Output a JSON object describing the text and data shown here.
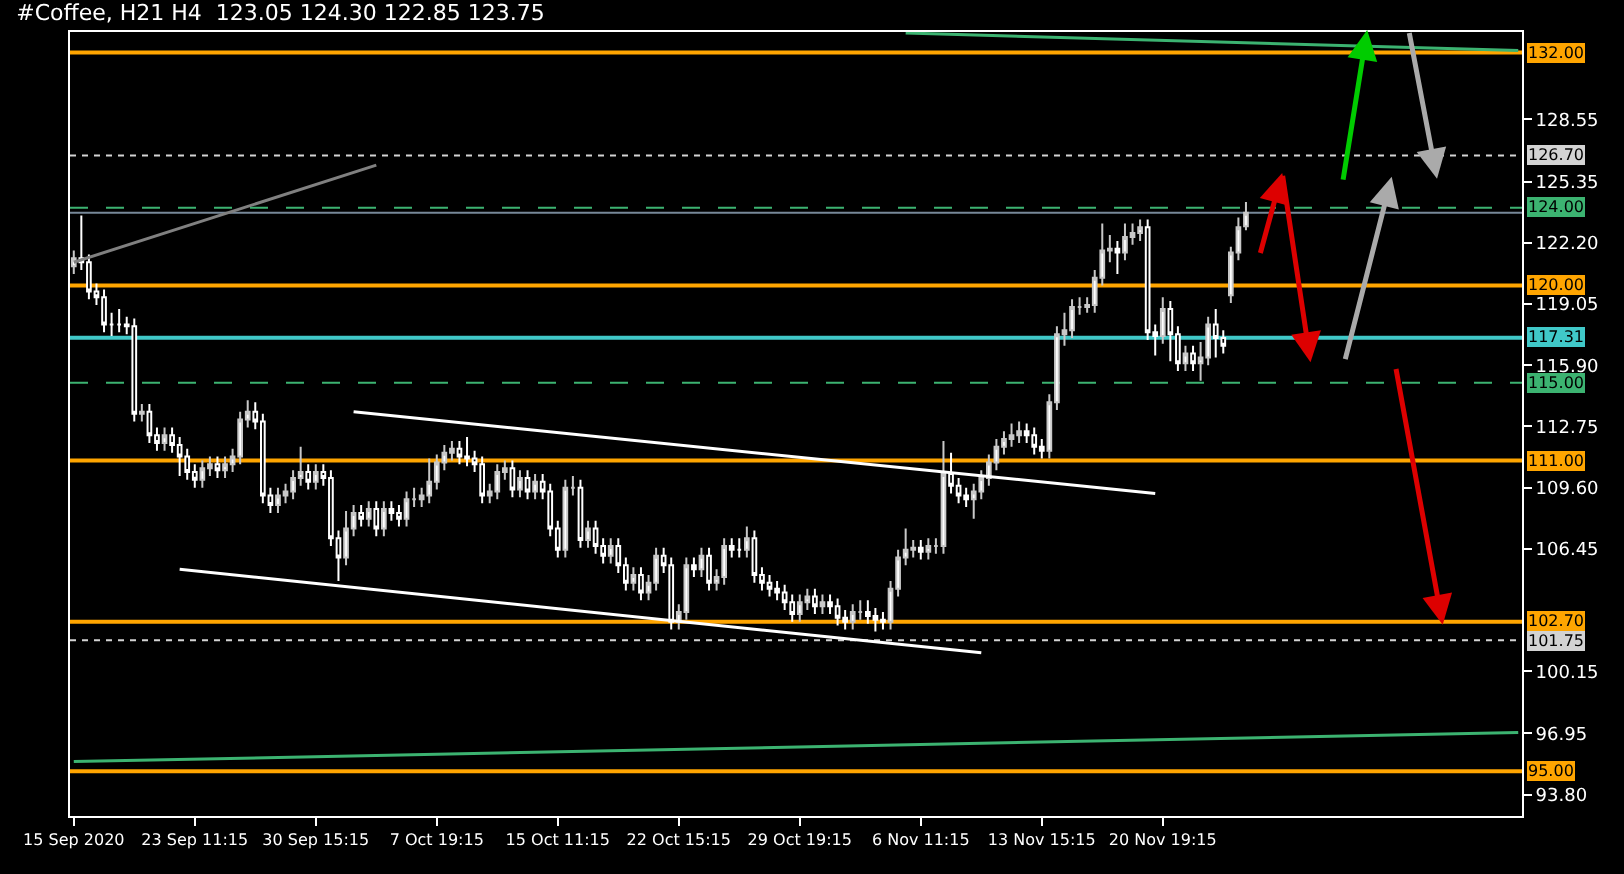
{
  "chart_data": {
    "type": "candlestick",
    "title": "#Coffee, H21 H4  123.05 124.30 122.85 123.75",
    "categories": [
      "15 Sep 2020",
      null,
      null,
      null,
      null,
      null,
      null,
      null,
      null,
      null,
      null,
      null,
      null,
      null,
      null,
      null,
      "23 Sep 11:15",
      null,
      null,
      null,
      null,
      null,
      null,
      null,
      null,
      null,
      null,
      null,
      null,
      null,
      null,
      null,
      "30 Sep 15:15",
      null,
      null,
      null,
      null,
      null,
      null,
      null,
      null,
      null,
      null,
      null,
      null,
      null,
      null,
      null,
      "7 Oct 19:15",
      null,
      null,
      null,
      null,
      null,
      null,
      null,
      null,
      null,
      null,
      null,
      null,
      null,
      null,
      null,
      "15 Oct 11:15",
      null,
      null,
      null,
      null,
      null,
      null,
      null,
      null,
      null,
      null,
      null,
      null,
      null,
      null,
      null,
      "22 Oct 15:15",
      null,
      null,
      null,
      null,
      null,
      null,
      null,
      null,
      null,
      null,
      null,
      null,
      null,
      null,
      null,
      "29 Oct 19:15",
      null,
      null,
      null,
      null,
      null,
      null,
      null,
      null,
      null,
      null,
      null,
      null,
      null,
      null,
      null,
      "6 Nov 11:15",
      null,
      null,
      null,
      null,
      null,
      null,
      null,
      null,
      null,
      null,
      null,
      null,
      null,
      null,
      null,
      "13 Nov 15:15",
      null,
      null,
      null,
      null,
      null,
      null,
      null,
      null,
      null,
      null,
      null,
      null,
      null,
      null,
      null,
      "20 Nov 19:15",
      null,
      null,
      null,
      null,
      null,
      null,
      null,
      null,
      null,
      null,
      null,
      null,
      null,
      null,
      null,
      null,
      null,
      null,
      null,
      null,
      null,
      null,
      null,
      null,
      null,
      null,
      null,
      null,
      null,
      null,
      null,
      null,
      null,
      null,
      null,
      null,
      null,
      null,
      null,
      null,
      null,
      null,
      null,
      null,
      null,
      null,
      null
    ],
    "ohlc": [
      [
        121.0,
        121.8,
        120.6,
        121.4
      ],
      [
        121.4,
        123.6,
        120.8,
        121.2
      ],
      [
        121.2,
        121.6,
        119.3,
        119.7
      ],
      [
        119.7,
        120.1,
        119.0,
        119.4
      ],
      [
        119.4,
        119.8,
        117.6,
        118.0
      ],
      [
        118.0,
        118.6,
        117.4,
        118.0
      ],
      [
        118.0,
        118.8,
        117.6,
        118.0
      ],
      [
        118.0,
        118.4,
        117.5,
        117.9
      ],
      [
        117.9,
        118.3,
        113.0,
        113.4
      ],
      [
        113.4,
        113.9,
        113.0,
        113.5
      ],
      [
        113.5,
        113.9,
        111.9,
        112.3
      ],
      [
        112.3,
        112.7,
        111.5,
        111.9
      ],
      [
        111.9,
        112.7,
        111.5,
        112.3
      ],
      [
        112.3,
        112.7,
        111.4,
        111.8
      ],
      [
        111.8,
        112.2,
        110.2,
        111.2
      ],
      [
        111.2,
        111.6,
        110.0,
        110.4
      ],
      [
        110.4,
        110.8,
        109.6,
        110.0
      ],
      [
        110.0,
        111.0,
        109.6,
        110.6
      ],
      [
        110.6,
        111.2,
        110.2,
        110.8
      ],
      [
        110.8,
        111.2,
        110.1,
        110.5
      ],
      [
        110.5,
        111.2,
        110.1,
        110.8
      ],
      [
        110.8,
        111.6,
        110.4,
        111.2
      ],
      [
        111.2,
        113.5,
        110.8,
        113.1
      ],
      [
        113.1,
        114.1,
        112.7,
        113.5
      ],
      [
        113.5,
        114.0,
        112.6,
        113.0
      ],
      [
        113.0,
        113.4,
        108.8,
        109.2
      ],
      [
        109.2,
        109.6,
        108.3,
        108.7
      ],
      [
        108.7,
        109.6,
        108.3,
        109.2
      ],
      [
        109.2,
        109.8,
        108.8,
        109.4
      ],
      [
        109.4,
        110.5,
        109.0,
        110.1
      ],
      [
        110.1,
        111.7,
        109.7,
        110.4
      ],
      [
        110.4,
        110.8,
        109.5,
        109.9
      ],
      [
        109.9,
        110.8,
        109.5,
        110.4
      ],
      [
        110.4,
        110.8,
        109.7,
        110.1
      ],
      [
        110.1,
        110.5,
        106.6,
        107.0
      ],
      [
        107.0,
        107.4,
        104.8,
        106.0
      ],
      [
        106.0,
        108.4,
        105.6,
        107.5
      ],
      [
        107.5,
        108.7,
        107.1,
        108.3
      ],
      [
        108.3,
        108.7,
        107.6,
        108.0
      ],
      [
        108.0,
        108.9,
        107.6,
        108.5
      ],
      [
        108.5,
        108.9,
        107.1,
        107.5
      ],
      [
        107.5,
        108.9,
        107.1,
        108.5
      ],
      [
        108.5,
        108.9,
        107.9,
        108.3
      ],
      [
        108.3,
        108.7,
        107.6,
        108.0
      ],
      [
        108.0,
        109.4,
        107.6,
        109.0
      ],
      [
        109.0,
        109.6,
        108.6,
        109.0
      ],
      [
        109.0,
        109.6,
        108.6,
        109.2
      ],
      [
        109.2,
        111.1,
        108.8,
        109.9
      ],
      [
        109.9,
        111.3,
        109.5,
        110.9
      ],
      [
        110.9,
        111.8,
        110.5,
        111.4
      ],
      [
        111.4,
        112.0,
        111.0,
        111.6
      ],
      [
        111.6,
        112.0,
        110.8,
        111.2
      ],
      [
        111.2,
        112.2,
        110.7,
        111.1
      ],
      [
        111.1,
        111.5,
        110.4,
        110.8
      ],
      [
        110.8,
        111.2,
        108.8,
        109.2
      ],
      [
        109.2,
        109.8,
        108.8,
        109.4
      ],
      [
        109.4,
        110.8,
        109.0,
        110.4
      ],
      [
        110.4,
        111.0,
        110.0,
        110.6
      ],
      [
        110.6,
        111.0,
        109.1,
        109.5
      ],
      [
        109.5,
        110.5,
        109.1,
        110.1
      ],
      [
        110.1,
        110.5,
        109.0,
        109.4
      ],
      [
        109.4,
        110.3,
        109.0,
        109.9
      ],
      [
        109.9,
        110.3,
        109.0,
        109.4
      ],
      [
        109.4,
        109.8,
        107.1,
        107.5
      ],
      [
        107.5,
        107.9,
        106.0,
        106.4
      ],
      [
        106.4,
        110.0,
        106.0,
        109.6
      ],
      [
        109.6,
        110.2,
        109.2,
        109.6
      ],
      [
        109.6,
        110.0,
        106.5,
        106.9
      ],
      [
        106.9,
        107.9,
        106.5,
        107.5
      ],
      [
        107.5,
        107.9,
        106.2,
        106.6
      ],
      [
        106.6,
        107.0,
        105.7,
        106.1
      ],
      [
        106.1,
        107.0,
        105.7,
        106.6
      ],
      [
        106.6,
        107.0,
        105.2,
        105.6
      ],
      [
        105.6,
        106.0,
        104.3,
        104.7
      ],
      [
        104.7,
        105.5,
        104.3,
        105.1
      ],
      [
        105.1,
        105.5,
        103.8,
        104.2
      ],
      [
        104.2,
        105.1,
        103.8,
        104.7
      ],
      [
        104.7,
        106.5,
        104.3,
        106.1
      ],
      [
        106.1,
        106.5,
        105.2,
        105.6
      ],
      [
        105.6,
        106.0,
        102.3,
        102.7
      ],
      [
        102.7,
        103.6,
        102.3,
        103.2
      ],
      [
        103.2,
        106.0,
        102.8,
        105.6
      ],
      [
        105.6,
        106.0,
        105.0,
        105.4
      ],
      [
        105.4,
        106.5,
        105.0,
        106.1
      ],
      [
        106.1,
        106.5,
        104.3,
        104.7
      ],
      [
        104.7,
        105.4,
        104.3,
        105.0
      ],
      [
        105.0,
        107.0,
        104.6,
        106.6
      ],
      [
        106.6,
        107.0,
        106.0,
        106.4
      ],
      [
        106.4,
        107.0,
        106.0,
        106.4
      ],
      [
        106.4,
        107.6,
        106.0,
        107.0
      ],
      [
        107.0,
        107.4,
        104.7,
        105.1
      ],
      [
        105.1,
        105.5,
        104.3,
        104.7
      ],
      [
        104.7,
        105.1,
        104.0,
        104.4
      ],
      [
        104.4,
        104.8,
        103.8,
        104.2
      ],
      [
        104.2,
        104.6,
        103.3,
        103.7
      ],
      [
        103.7,
        104.1,
        102.7,
        103.1
      ],
      [
        103.1,
        104.1,
        102.7,
        103.7
      ],
      [
        103.7,
        104.4,
        103.3,
        104.0
      ],
      [
        104.0,
        104.4,
        103.1,
        103.5
      ],
      [
        103.5,
        104.1,
        103.1,
        103.7
      ],
      [
        103.7,
        104.1,
        103.1,
        103.5
      ],
      [
        103.5,
        103.9,
        102.5,
        102.9
      ],
      [
        102.9,
        103.3,
        102.3,
        102.7
      ],
      [
        102.7,
        103.6,
        102.3,
        103.2
      ],
      [
        103.2,
        103.8,
        102.8,
        103.2
      ],
      [
        103.2,
        103.8,
        102.6,
        103.0
      ],
      [
        103.0,
        103.4,
        102.2,
        102.8
      ],
      [
        102.8,
        103.2,
        102.3,
        102.7
      ],
      [
        102.7,
        104.8,
        102.3,
        104.4
      ],
      [
        104.4,
        106.4,
        104.0,
        106.0
      ],
      [
        106.0,
        107.5,
        105.6,
        106.4
      ],
      [
        106.4,
        106.9,
        106.0,
        106.5
      ],
      [
        106.5,
        106.9,
        105.9,
        106.3
      ],
      [
        106.3,
        107.0,
        105.9,
        106.6
      ],
      [
        106.6,
        107.0,
        106.2,
        106.6
      ],
      [
        106.6,
        112.0,
        106.2,
        110.3
      ],
      [
        110.3,
        111.4,
        109.3,
        109.7
      ],
      [
        109.7,
        110.1,
        108.8,
        109.2
      ],
      [
        109.2,
        109.6,
        108.6,
        109.0
      ],
      [
        109.0,
        109.8,
        108.0,
        109.4
      ],
      [
        109.4,
        110.5,
        109.0,
        110.1
      ],
      [
        110.1,
        111.3,
        109.7,
        110.9
      ],
      [
        110.9,
        112.1,
        110.5,
        111.7
      ],
      [
        111.7,
        112.5,
        111.3,
        112.1
      ],
      [
        112.1,
        112.9,
        111.7,
        112.3
      ],
      [
        112.3,
        113.0,
        111.9,
        112.5
      ],
      [
        112.5,
        112.9,
        111.9,
        112.3
      ],
      [
        112.3,
        112.7,
        111.3,
        111.7
      ],
      [
        111.7,
        112.1,
        111.1,
        111.5
      ],
      [
        111.5,
        114.4,
        111.1,
        114.0
      ],
      [
        114.0,
        117.9,
        113.6,
        117.5
      ],
      [
        117.5,
        118.6,
        116.9,
        117.7
      ],
      [
        117.7,
        119.3,
        117.3,
        118.9
      ],
      [
        118.9,
        119.4,
        118.5,
        118.9
      ],
      [
        118.9,
        119.4,
        118.6,
        119.0
      ],
      [
        119.0,
        120.8,
        118.6,
        120.4
      ],
      [
        120.4,
        123.2,
        120.0,
        121.8
      ],
      [
        121.8,
        122.6,
        121.2,
        121.9
      ],
      [
        121.9,
        122.3,
        120.6,
        121.7
      ],
      [
        121.7,
        123.2,
        121.3,
        122.5
      ],
      [
        122.5,
        123.2,
        122.1,
        122.7
      ],
      [
        122.7,
        123.4,
        122.3,
        123.0
      ],
      [
        123.0,
        123.4,
        117.2,
        117.6
      ],
      [
        117.6,
        118.0,
        116.4,
        117.4
      ],
      [
        117.4,
        119.4,
        117.0,
        118.8
      ],
      [
        118.8,
        119.2,
        116.1,
        117.5
      ],
      [
        117.5,
        117.9,
        115.6,
        116.0
      ],
      [
        116.0,
        116.9,
        115.6,
        116.5
      ],
      [
        116.5,
        116.9,
        115.6,
        116.0
      ],
      [
        116.0,
        117.1,
        115.1,
        116.3
      ],
      [
        116.3,
        118.4,
        115.9,
        118.0
      ],
      [
        118.0,
        118.8,
        116.3,
        117.3
      ],
      [
        117.3,
        117.7,
        116.5,
        116.9
      ],
      [
        119.5,
        122.0,
        119.1,
        121.7
      ],
      [
        121.7,
        123.5,
        121.3,
        123.0
      ],
      [
        123.05,
        124.3,
        122.85,
        123.75
      ],
      null,
      null,
      null,
      null,
      null,
      null,
      null,
      null,
      null,
      null,
      null,
      null,
      null,
      null,
      null,
      null,
      null,
      null,
      null,
      null,
      null,
      null,
      null,
      null,
      null,
      null,
      null,
      null,
      null,
      null,
      null,
      null,
      null,
      null,
      null,
      null
    ],
    "series": [
      {
        "type": "line",
        "color": "#ffffff",
        "values": [
          null,
          null,
          null,
          null,
          null,
          null,
          null,
          null,
          null,
          null,
          null,
          null,
          null,
          null,
          null,
          null,
          null,
          null,
          null,
          null,
          null,
          null,
          null,
          null,
          null,
          null,
          null,
          null,
          null,
          null,
          null,
          null,
          null,
          null,
          null,
          null,
          null,
          113.5,
          null,
          null,
          null,
          null,
          null,
          null,
          null,
          null,
          null,
          null,
          null,
          null,
          null,
          null,
          null,
          null,
          null,
          null,
          null,
          null,
          null,
          null,
          null,
          null,
          null,
          null,
          null,
          null,
          null,
          null,
          null,
          null,
          null,
          null,
          null,
          null,
          null,
          null,
          null,
          null,
          null,
          null,
          null,
          null,
          null,
          null,
          null,
          null,
          null,
          null,
          null,
          null,
          null,
          null,
          null,
          null,
          null,
          null,
          null,
          null,
          null,
          null,
          null,
          null,
          null,
          null,
          null,
          null,
          null,
          null,
          null,
          null,
          null,
          null,
          null,
          null,
          null,
          null,
          null,
          null,
          null,
          null,
          null,
          null,
          null,
          null,
          null,
          null,
          null,
          null,
          null,
          null,
          null,
          null,
          null,
          null,
          null,
          null,
          null,
          null,
          null,
          null,
          null,
          null,
          null,
          109.3,
          null,
          null,
          null,
          null,
          null,
          null,
          null,
          null,
          null,
          null,
          null,
          null,
          null,
          null,
          null,
          null,
          null,
          null,
          null,
          null,
          null,
          null,
          null,
          null,
          null,
          null,
          null,
          null,
          null,
          null,
          null,
          null,
          null,
          null,
          null,
          null,
          null,
          null,
          null,
          null,
          null,
          null,
          null,
          null,
          null,
          null,
          null,
          null
        ]
      },
      {
        "type": "line",
        "color": "#ffffff",
        "values": [
          null,
          null,
          null,
          null,
          null,
          null,
          null,
          null,
          null,
          null,
          null,
          null,
          null,
          null,
          105.4,
          null,
          null,
          null,
          null,
          null,
          null,
          null,
          null,
          null,
          null,
          null,
          null,
          null,
          null,
          null,
          null,
          null,
          null,
          null,
          null,
          null,
          null,
          null,
          null,
          null,
          null,
          null,
          null,
          null,
          null,
          null,
          null,
          null,
          null,
          null,
          null,
          null,
          null,
          null,
          null,
          null,
          null,
          null,
          null,
          null,
          null,
          null,
          null,
          null,
          null,
          null,
          null,
          null,
          null,
          null,
          null,
          null,
          null,
          null,
          null,
          null,
          null,
          null,
          null,
          null,
          null,
          null,
          null,
          null,
          null,
          null,
          null,
          null,
          null,
          null,
          null,
          null,
          null,
          null,
          null,
          null,
          null,
          null,
          null,
          null,
          null,
          null,
          null,
          null,
          null,
          null,
          null,
          null,
          null,
          null,
          null,
          null,
          null,
          null,
          null,
          null,
          null,
          null,
          null,
          null,
          101.1,
          null,
          null,
          null,
          null,
          null,
          null,
          null,
          null,
          null,
          null,
          null,
          null,
          null,
          null,
          null,
          null,
          null,
          null,
          null,
          null,
          null,
          null,
          null,
          null,
          null,
          null,
          null,
          null,
          null,
          null,
          null,
          null,
          null,
          null,
          null,
          null,
          null,
          null,
          null,
          null,
          null,
          null,
          null,
          null,
          null,
          null,
          null,
          null,
          null,
          null,
          null,
          null,
          null,
          null,
          null,
          null,
          null,
          null,
          null,
          null,
          null,
          null,
          null,
          null,
          null,
          null,
          null,
          null,
          null,
          null,
          null
        ]
      },
      {
        "type": "line",
        "color": "#808080",
        "values": [
          121.2,
          null,
          null,
          null,
          null,
          null,
          null,
          null,
          null,
          null,
          null,
          null,
          null,
          null,
          null,
          null,
          null,
          null,
          null,
          null,
          null,
          null,
          null,
          null,
          null,
          null,
          null,
          null,
          null,
          null,
          null,
          null,
          null,
          null,
          null,
          null,
          null,
          null,
          null,
          null,
          126.2,
          null,
          null,
          null,
          null,
          null,
          null,
          null,
          null,
          null,
          null,
          null,
          null,
          null,
          null,
          null,
          null,
          null,
          null,
          null,
          null,
          null,
          null,
          null,
          null,
          null,
          null,
          null,
          null,
          null,
          null,
          null,
          null,
          null,
          null,
          null,
          null,
          null,
          null,
          null,
          null,
          null,
          null,
          null,
          null,
          null,
          null,
          null,
          null,
          null,
          null,
          null,
          null,
          null,
          null,
          null,
          null,
          null,
          null,
          null,
          null,
          null,
          null,
          null,
          null,
          null,
          null,
          null,
          null,
          null,
          null,
          null,
          null,
          null,
          null,
          null,
          null,
          null,
          null,
          null,
          null,
          null,
          null,
          null,
          null,
          null,
          null,
          null,
          null,
          null,
          null,
          null,
          null,
          null,
          null,
          null,
          null,
          null,
          null,
          null,
          null,
          null,
          null,
          null,
          null,
          null,
          null,
          null,
          null,
          null,
          null,
          null,
          null,
          null,
          null,
          null,
          null,
          null,
          null,
          null,
          null,
          null,
          null,
          null,
          null,
          null,
          null,
          null,
          null,
          null,
          null,
          null,
          null,
          null,
          null,
          null,
          null,
          null,
          null,
          null,
          null,
          null,
          null,
          null,
          null,
          null,
          null,
          null,
          null,
          null,
          null,
          null
        ]
      },
      {
        "type": "line",
        "color": "#3cb371",
        "values": [
          null,
          null,
          null,
          null,
          null,
          null,
          null,
          null,
          null,
          null,
          null,
          null,
          null,
          null,
          null,
          null,
          null,
          null,
          null,
          null,
          null,
          null,
          null,
          null,
          null,
          null,
          null,
          null,
          null,
          null,
          null,
          null,
          null,
          null,
          null,
          null,
          null,
          null,
          null,
          null,
          null,
          null,
          null,
          null,
          null,
          null,
          null,
          null,
          null,
          null,
          null,
          null,
          null,
          null,
          null,
          null,
          null,
          null,
          null,
          null,
          null,
          null,
          null,
          null,
          null,
          null,
          null,
          null,
          null,
          null,
          null,
          null,
          null,
          null,
          null,
          null,
          null,
          null,
          null,
          null,
          null,
          null,
          null,
          null,
          null,
          null,
          null,
          null,
          null,
          null,
          null,
          null,
          null,
          null,
          null,
          null,
          null,
          null,
          null,
          null,
          null,
          null,
          null,
          null,
          null,
          null,
          null,
          null,
          null,
          null,
          133.0,
          null,
          null,
          null,
          null,
          null,
          null,
          null,
          null,
          null,
          null,
          null,
          null,
          null,
          null,
          null,
          null,
          null,
          null,
          null,
          null,
          null,
          null,
          null,
          null,
          null,
          null,
          null,
          null,
          null,
          null,
          null,
          null,
          null,
          null,
          null,
          null,
          null,
          null,
          null,
          null,
          null,
          null,
          null,
          null,
          null,
          null,
          null,
          null,
          null,
          null,
          null,
          null,
          null,
          null,
          null,
          null,
          null,
          null,
          null,
          null,
          null,
          null,
          null,
          null,
          null,
          null,
          null,
          null,
          null,
          null,
          null,
          null,
          null,
          null,
          null,
          null,
          null,
          null,
          null,
          null,
          132.1
        ]
      },
      {
        "type": "line",
        "color": "#3cb371",
        "values": [
          95.5,
          null,
          null,
          null,
          null,
          null,
          null,
          null,
          null,
          null,
          null,
          null,
          null,
          null,
          null,
          null,
          null,
          null,
          null,
          null,
          null,
          null,
          null,
          null,
          null,
          null,
          null,
          null,
          null,
          null,
          null,
          null,
          null,
          null,
          null,
          null,
          null,
          null,
          null,
          null,
          null,
          null,
          null,
          null,
          null,
          null,
          null,
          null,
          null,
          null,
          null,
          null,
          null,
          null,
          null,
          null,
          null,
          null,
          null,
          null,
          null,
          null,
          null,
          null,
          null,
          null,
          null,
          null,
          null,
          null,
          null,
          null,
          null,
          null,
          null,
          null,
          null,
          null,
          null,
          null,
          null,
          null,
          null,
          null,
          null,
          null,
          null,
          null,
          null,
          null,
          null,
          null,
          null,
          null,
          null,
          null,
          null,
          null,
          null,
          null,
          null,
          null,
          null,
          null,
          null,
          null,
          null,
          null,
          null,
          null,
          null,
          null,
          null,
          null,
          null,
          null,
          null,
          null,
          null,
          null,
          null,
          null,
          null,
          null,
          null,
          null,
          null,
          null,
          null,
          null,
          null,
          null,
          null,
          null,
          null,
          null,
          null,
          null,
          null,
          null,
          null,
          null,
          null,
          null,
          null,
          null,
          null,
          null,
          null,
          null,
          null,
          null,
          null,
          null,
          null,
          null,
          null,
          null,
          null,
          null,
          null,
          null,
          null,
          null,
          null,
          null,
          null,
          null,
          null,
          null,
          null,
          null,
          null,
          null,
          null,
          null,
          null,
          null,
          null,
          null,
          null,
          null,
          null,
          null,
          null,
          null,
          null,
          null,
          null,
          null,
          null,
          97.0
        ]
      }
    ],
    "ref_lines": [
      {
        "axis": "y",
        "value": 132.0,
        "label": "132.00",
        "color": "#ffa500",
        "line_style": "solid"
      },
      {
        "axis": "y",
        "value": 126.7,
        "label": "126.70",
        "color": "#d3d3d3",
        "line_style": "dotted"
      },
      {
        "axis": "y",
        "value": 124.0,
        "label": "124.00",
        "color": "#3cb371",
        "line_style": "dashed"
      },
      {
        "axis": "y",
        "value": 123.75,
        "color": "#778899",
        "line_style": "solid"
      },
      {
        "axis": "y",
        "value": 120.0,
        "label": "120.00",
        "color": "#ffa500",
        "line_style": "solid"
      },
      {
        "axis": "y",
        "value": 117.31,
        "label": "117.31",
        "color": "#40c8c8",
        "line_style": "solid"
      },
      {
        "axis": "y",
        "value": 115.0,
        "label": "115.00",
        "color": "#3cb371",
        "line_style": "dashed"
      },
      {
        "axis": "y",
        "value": 111.0,
        "label": "111.00",
        "color": "#ffa500",
        "line_style": "solid"
      },
      {
        "axis": "y",
        "value": 102.7,
        "label": "102.70",
        "color": "#ffa500",
        "line_style": "solid"
      },
      {
        "axis": "y",
        "value": 101.75,
        "label": "101.75",
        "color": "#d3d3d3",
        "line_style": "dotted"
      },
      {
        "axis": "y",
        "value": 95.0,
        "label": "95.00",
        "color": "#ffa500",
        "line_style": "solid"
      }
    ],
    "ylim": [
      92.7,
      133.05
    ],
    "yticks": [
      128.55,
      125.35,
      {
        "value": 122.2,
        "label": "122.20"
      },
      119.05,
      {
        "value": 115.9,
        "label": "115.90"
      },
      112.75,
      {
        "value": 109.6,
        "label": "109.60"
      },
      106.45,
      100.15,
      96.95,
      {
        "value": 93.8,
        "label": "93.80"
      }
    ],
    "grid": false
  }
}
